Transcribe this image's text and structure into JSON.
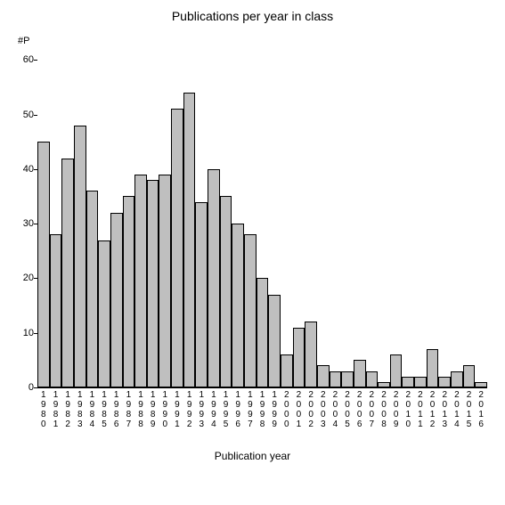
{
  "chart": {
    "type": "bar",
    "title": "Publications per year in class",
    "title_fontsize": 14,
    "y_axis_label": "#P",
    "x_axis_title": "Publication year",
    "x_axis_title_fontsize": 12,
    "label_fontsize": 11,
    "tick_fontsize": 10,
    "background_color": "#ffffff",
    "bar_fill_color": "#bfbfbf",
    "bar_border_color": "#000000",
    "axis_color": "#000000",
    "ylim": [
      0,
      62
    ],
    "y_ticks": [
      0,
      10,
      20,
      30,
      40,
      50,
      60
    ],
    "bar_width_ratio": 1.0,
    "categories": [
      "1980",
      "1981",
      "1982",
      "1983",
      "1984",
      "1985",
      "1986",
      "1987",
      "1988",
      "1989",
      "1990",
      "1991",
      "1992",
      "1993",
      "1994",
      "1995",
      "1996",
      "1997",
      "1998",
      "1999",
      "2000",
      "2001",
      "2002",
      "2003",
      "2004",
      "2005",
      "2006",
      "2007",
      "2008",
      "2009",
      "2010",
      "2011",
      "2012",
      "2013",
      "2014",
      "2015",
      "2016"
    ],
    "values": [
      45,
      28,
      42,
      48,
      36,
      27,
      32,
      35,
      39,
      38,
      39,
      51,
      54,
      34,
      40,
      35,
      30,
      28,
      20,
      17,
      6,
      11,
      12,
      4,
      3,
      3,
      5,
      3,
      1,
      6,
      2,
      2,
      7,
      2,
      3,
      4,
      1
    ]
  }
}
